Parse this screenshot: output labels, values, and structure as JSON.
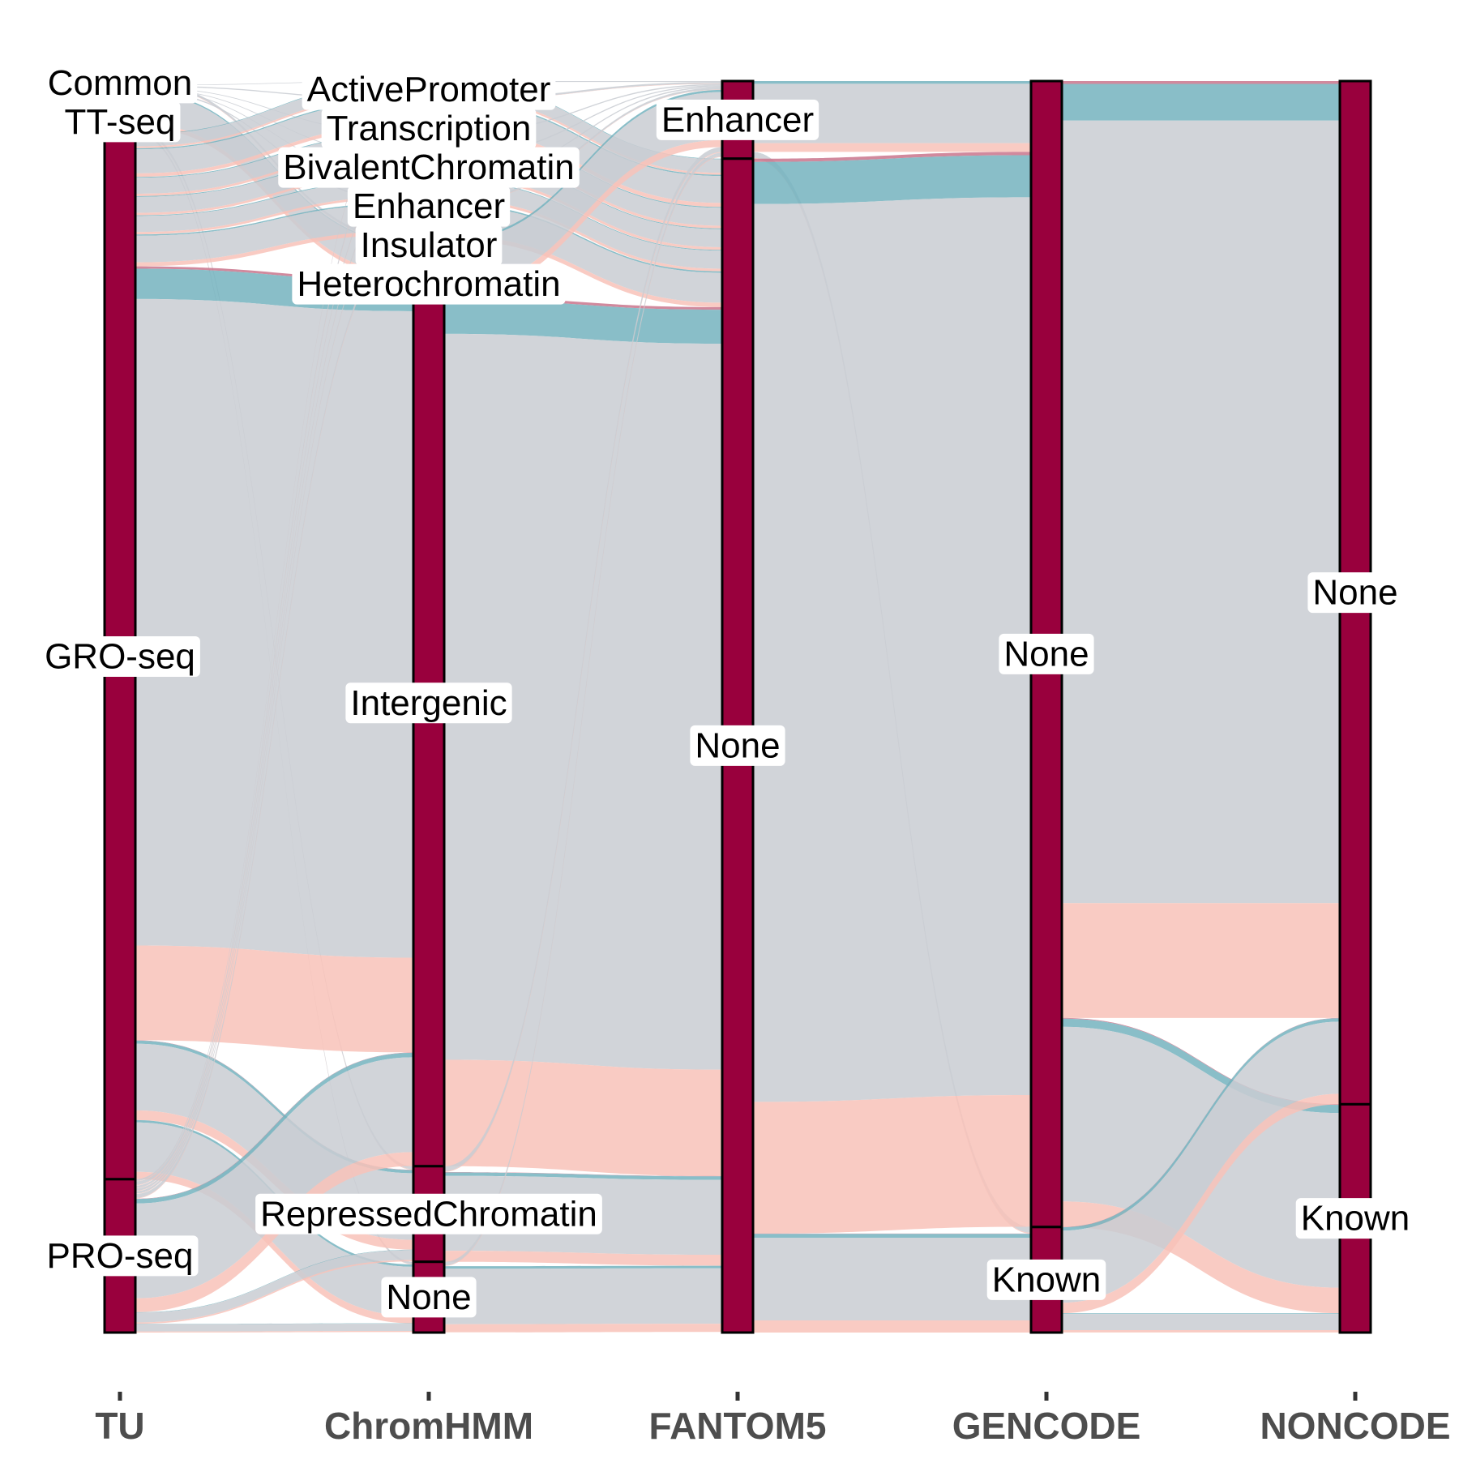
{
  "chart_data": {
    "type": "alluvial",
    "axes": [
      "TU",
      "ChromHMM",
      "FANTOM5",
      "GENCODE",
      "NONCODE"
    ],
    "strata": {
      "TU": [
        {
          "label": "Common",
          "value": 10
        },
        {
          "label": "TT-seq",
          "value": 128
        },
        {
          "label": "GRO-seq",
          "value": 2734
        },
        {
          "label": "PRO-seq",
          "value": 401
        }
      ],
      "ChromHMM": [
        {
          "label": "ActivePromoter",
          "value": 45
        },
        {
          "label": "Transcription",
          "value": 90
        },
        {
          "label": "BivalentChromatin",
          "value": 60
        },
        {
          "label": "Enhancer",
          "value": 60
        },
        {
          "label": "Insulator",
          "value": 60
        },
        {
          "label": "Heterochromatin",
          "value": 100
        },
        {
          "label": "Intergenic",
          "value": 2423
        },
        {
          "label": "RepressedChromatin",
          "value": 250
        },
        {
          "label": "None",
          "value": 185
        }
      ],
      "FANTOM5": [
        {
          "label": "Enhancer",
          "value": 203
        },
        {
          "label": "None",
          "value": 3070
        }
      ],
      "GENCODE": [
        {
          "label": "None",
          "value": 2997
        },
        {
          "label": "Known",
          "value": 276
        }
      ],
      "NONCODE": [
        {
          "label": "None",
          "value": 2676
        },
        {
          "label": "Known",
          "value": 597
        }
      ]
    },
    "flow_colors": {
      "Common": "#c9748c",
      "TT-seq": "#74b3be",
      "GRO-seq": "#c9ccd2",
      "PRO-seq": "#f8c2b8"
    },
    "stratum_color": "#99003d"
  }
}
